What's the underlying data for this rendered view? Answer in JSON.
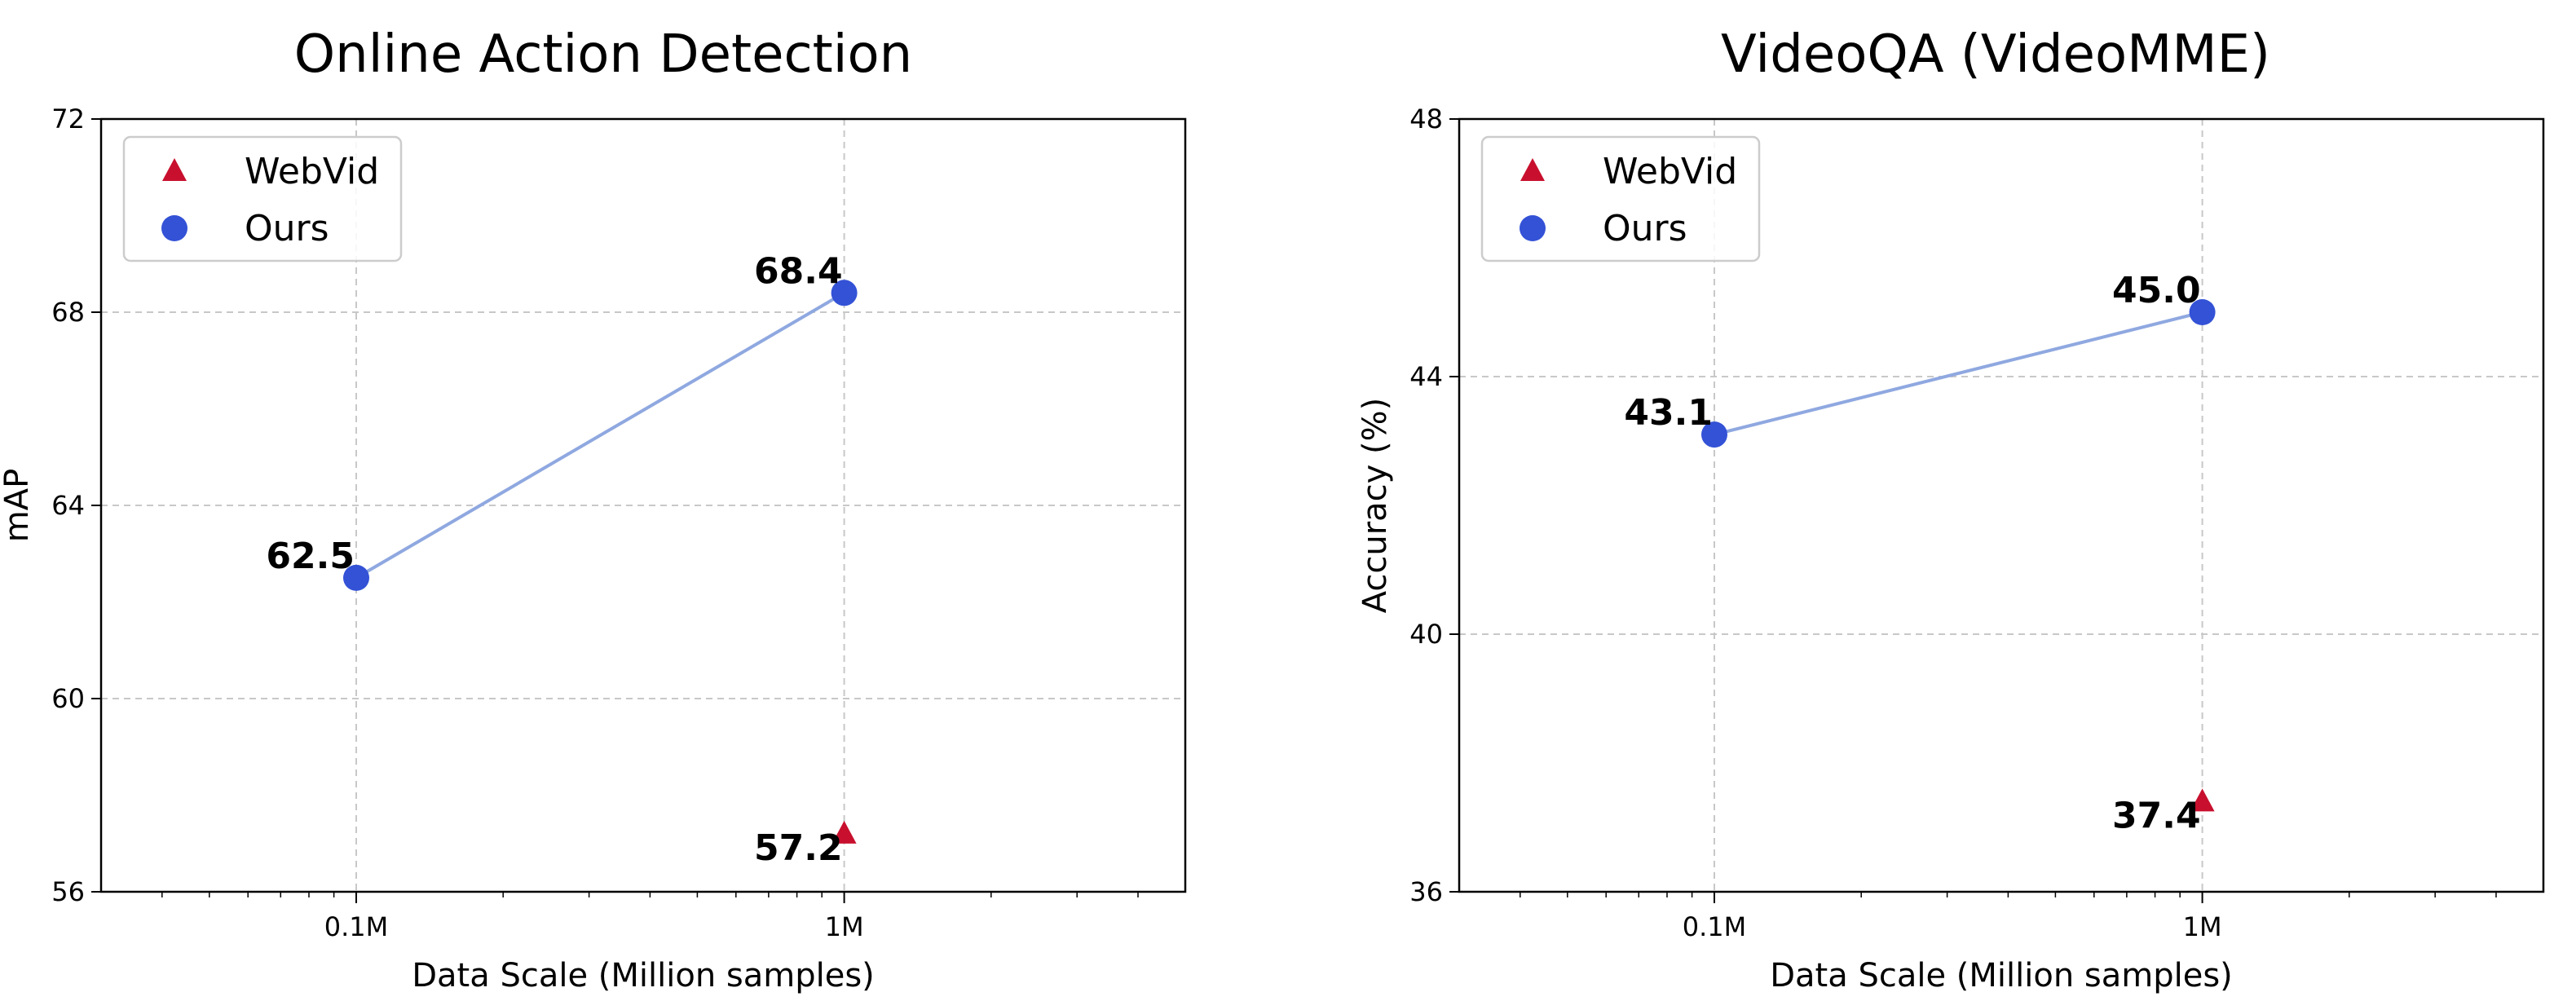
{
  "chart_data": [
    {
      "type": "scatter",
      "title": "Online Action Detection",
      "xlabel": "Data Scale (Million samples)",
      "ylabel": "mAP",
      "xscale": "log",
      "xlim": [
        0.03,
        5
      ],
      "ylim": [
        56,
        72
      ],
      "xticks": [
        {
          "value": 0.1,
          "label": "0.1M"
        },
        {
          "value": 1,
          "label": "1M"
        }
      ],
      "yticks": [
        56,
        60,
        64,
        68,
        72
      ],
      "grid": true,
      "legend_position": "top-left",
      "series": [
        {
          "name": "WebVid",
          "marker": "triangle",
          "color": "#c8102e",
          "connected": false,
          "points": [
            {
              "x": 1,
              "y": 57.2,
              "label": "57.2"
            }
          ]
        },
        {
          "name": "Ours",
          "marker": "circle",
          "color": "#3352d6",
          "connected": true,
          "line_color": "#8fa8e0",
          "points": [
            {
              "x": 0.1,
              "y": 62.5,
              "label": "62.5"
            },
            {
              "x": 1,
              "y": 68.4,
              "label": "68.4"
            }
          ]
        }
      ]
    },
    {
      "type": "scatter",
      "title": "VideoQA (VideoMME)",
      "xlabel": "Data Scale (Million samples)",
      "ylabel": "Accuracy (%)",
      "xscale": "log",
      "xlim": [
        0.03,
        5
      ],
      "ylim": [
        36,
        48
      ],
      "xticks": [
        {
          "value": 0.1,
          "label": "0.1M"
        },
        {
          "value": 1,
          "label": "1M"
        }
      ],
      "yticks": [
        36,
        40,
        44,
        48
      ],
      "grid": true,
      "legend_position": "top-left",
      "series": [
        {
          "name": "WebVid",
          "marker": "triangle",
          "color": "#c8102e",
          "connected": false,
          "points": [
            {
              "x": 1,
              "y": 37.4,
              "label": "37.4"
            }
          ]
        },
        {
          "name": "Ours",
          "marker": "circle",
          "color": "#3352d6",
          "connected": true,
          "line_color": "#8fa8e0",
          "points": [
            {
              "x": 0.1,
              "y": 43.1,
              "label": "43.1"
            },
            {
              "x": 1,
              "y": 45.0,
              "label": "45.0"
            }
          ]
        }
      ]
    }
  ]
}
